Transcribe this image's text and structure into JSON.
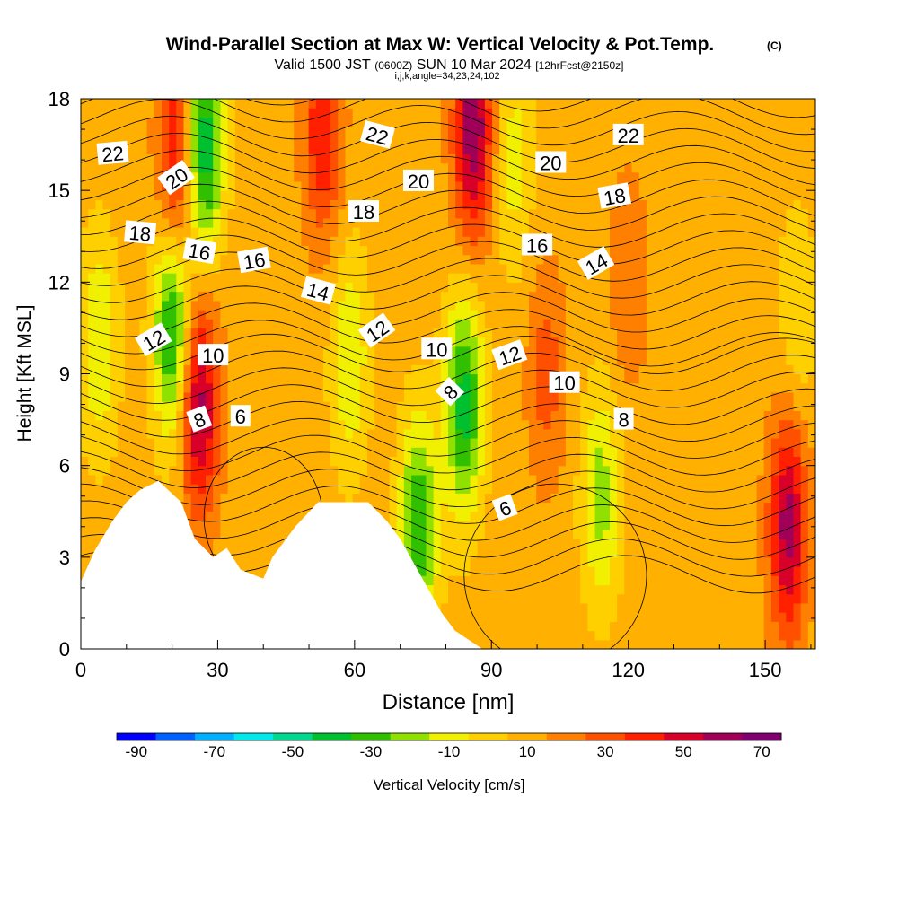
{
  "chart_data": {
    "type": "heatmap",
    "title": "Wind-Parallel Section at Max W: Vertical Velocity & Pot.Temp.",
    "title_mark": "(C)",
    "subtitle": {
      "valid_prefix": "Valid 1500 JST",
      "utc": "(0600Z)",
      "date": "SUN 10 Mar 2024",
      "forecast": "[12hrFcst@2150z]"
    },
    "info_line": "i,j,k,angle=34,23,24,102",
    "xlabel": "Distance [nm]",
    "ylabel": "Height [Kft MSL]",
    "xlim": [
      0,
      161
    ],
    "ylim": [
      0,
      18
    ],
    "x_ticks": [
      "0",
      "30",
      "60",
      "90",
      "120",
      "150"
    ],
    "y_ticks": [
      "0",
      "3",
      "6",
      "9",
      "12",
      "15",
      "18"
    ],
    "grid": false,
    "colorbar": {
      "label": "Vertical Velocity [cm/s]",
      "tick_labels": [
        "-90",
        "-70",
        "-50",
        "-30",
        "-10",
        "10",
        "30",
        "50",
        "70"
      ],
      "colors": [
        "#0000ff",
        "#0060ff",
        "#00b0ff",
        "#00e8e8",
        "#00d890",
        "#00c030",
        "#30c000",
        "#90e000",
        "#f0f000",
        "#ffd000",
        "#ffb000",
        "#ff8000",
        "#ff5000",
        "#ff2000",
        "#d80028",
        "#a00058",
        "#800070"
      ]
    },
    "w_field": {
      "background_cm_s": 5,
      "features": [
        {
          "x": 4,
          "y": 10,
          "peak": -25
        },
        {
          "x": 20,
          "y": 10.5,
          "peak": -50
        },
        {
          "x": 27,
          "y": 16.5,
          "peak": -55
        },
        {
          "x": 26,
          "y": 8,
          "peak": 50
        },
        {
          "x": 21,
          "y": 16,
          "peak": 40
        },
        {
          "x": 53,
          "y": 17,
          "peak": 35
        },
        {
          "x": 59,
          "y": 9.5,
          "peak": -25
        },
        {
          "x": 74,
          "y": 4,
          "peak": -45
        },
        {
          "x": 84,
          "y": 8,
          "peak": -50
        },
        {
          "x": 86,
          "y": 17,
          "peak": 55
        },
        {
          "x": 95,
          "y": 16,
          "peak": -20
        },
        {
          "x": 114,
          "y": 5,
          "peak": -30
        },
        {
          "x": 102,
          "y": 9,
          "peak": 20
        },
        {
          "x": 120,
          "y": 12,
          "peak": 15
        },
        {
          "x": 155,
          "y": 4,
          "peak": 50
        },
        {
          "x": 157,
          "y": 11,
          "peak": -15
        }
      ]
    },
    "terrain_kft": [
      [
        0,
        2.2
      ],
      [
        3,
        3.2
      ],
      [
        7,
        4.2
      ],
      [
        10,
        4.8
      ],
      [
        13,
        5.2
      ],
      [
        17,
        5.5
      ],
      [
        22,
        4.8
      ],
      [
        25,
        3.6
      ],
      [
        29,
        3.0
      ],
      [
        32,
        3.3
      ],
      [
        35,
        2.6
      ],
      [
        40,
        2.3
      ],
      [
        42,
        3.0
      ],
      [
        47,
        4.0
      ],
      [
        52,
        4.8
      ],
      [
        58,
        4.8
      ],
      [
        63,
        4.8
      ],
      [
        67,
        4.2
      ],
      [
        70,
        3.6
      ],
      [
        73,
        2.8
      ],
      [
        76,
        2.0
      ],
      [
        79,
        1.2
      ],
      [
        82,
        0.6
      ],
      [
        88,
        0.0
      ],
      [
        161,
        0.0
      ]
    ],
    "theta_contours": {
      "levels": [
        6,
        8,
        10,
        12,
        14,
        16,
        18,
        20,
        22
      ],
      "labels": [
        {
          "text": "22",
          "x": 7,
          "y": 16.2,
          "angle": -5
        },
        {
          "text": "20",
          "x": 21,
          "y": 15.4,
          "angle": -35
        },
        {
          "text": "18",
          "x": 13,
          "y": 13.6,
          "angle": 5
        },
        {
          "text": "16",
          "x": 26,
          "y": 13.0,
          "angle": 10
        },
        {
          "text": "16",
          "x": 38,
          "y": 12.7,
          "angle": -10
        },
        {
          "text": "14",
          "x": 52,
          "y": 11.7,
          "angle": 15
        },
        {
          "text": "12",
          "x": 16,
          "y": 10.1,
          "angle": -30
        },
        {
          "text": "10",
          "x": 29,
          "y": 9.6,
          "angle": 0
        },
        {
          "text": "12",
          "x": 65,
          "y": 10.4,
          "angle": -35
        },
        {
          "text": "10",
          "x": 78,
          "y": 9.8,
          "angle": 0
        },
        {
          "text": "8",
          "x": 26,
          "y": 7.5,
          "angle": -20
        },
        {
          "text": "6",
          "x": 35,
          "y": 7.6,
          "angle": 0
        },
        {
          "text": "8",
          "x": 81,
          "y": 8.4,
          "angle": -45
        },
        {
          "text": "12",
          "x": 94,
          "y": 9.6,
          "angle": -20
        },
        {
          "text": "10",
          "x": 106,
          "y": 8.7,
          "angle": 0
        },
        {
          "text": "8",
          "x": 119,
          "y": 7.5,
          "angle": 0
        },
        {
          "text": "6",
          "x": 93,
          "y": 4.6,
          "angle": -20
        },
        {
          "text": "22",
          "x": 65,
          "y": 16.8,
          "angle": 15
        },
        {
          "text": "20",
          "x": 74,
          "y": 15.3,
          "angle": 0
        },
        {
          "text": "18",
          "x": 62,
          "y": 14.3,
          "angle": 0
        },
        {
          "text": "22",
          "x": 120,
          "y": 16.8,
          "angle": 0
        },
        {
          "text": "20",
          "x": 103,
          "y": 15.9,
          "angle": 0
        },
        {
          "text": "18",
          "x": 117,
          "y": 14.8,
          "angle": -10
        },
        {
          "text": "16",
          "x": 100,
          "y": 13.2,
          "angle": 0
        },
        {
          "text": "14",
          "x": 113,
          "y": 12.6,
          "angle": -30
        }
      ]
    }
  }
}
